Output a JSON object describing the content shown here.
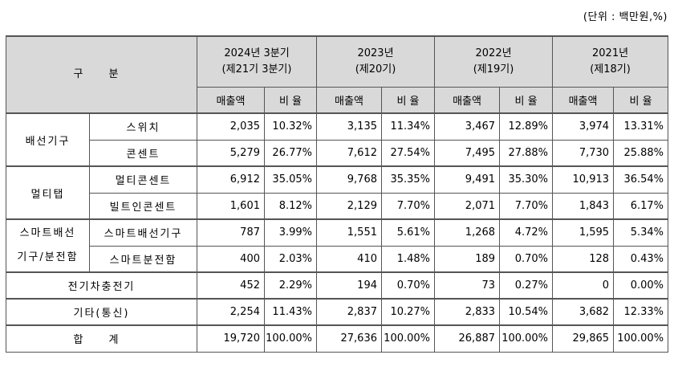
{
  "unit_note": "(단위 : 백만원,%)",
  "header": {
    "category": "구 분",
    "periods": [
      {
        "line1": "2024년 3분기",
        "line2": "(제21기 3분기)"
      },
      {
        "line1": "2023년",
        "line2": "(제20기)"
      },
      {
        "line1": "2022년",
        "line2": "(제19기)"
      },
      {
        "line1": "2021년",
        "line2": "(제18기)"
      }
    ],
    "sales_label": "매출액",
    "ratio_label": "비 율"
  },
  "groups": {
    "wiring": "배선기구",
    "multitap": "멀티탭",
    "smart_line1": "스마트배선",
    "smart_line2": "기구/분전함"
  },
  "rows": [
    {
      "label": "스위치",
      "cells": [
        "2,035",
        "10.32%",
        "3,135",
        "11.34%",
        "3,467",
        "12.89%",
        "3,974",
        "13.31%"
      ]
    },
    {
      "label": "콘센트",
      "cells": [
        "5,279",
        "26.77%",
        "7,612",
        "27.54%",
        "7,495",
        "27.88%",
        "7,730",
        "25.88%"
      ]
    },
    {
      "label": "멀티콘센트",
      "cells": [
        "6,912",
        "35.05%",
        "9,768",
        "35.35%",
        "9,491",
        "35.30%",
        "10,913",
        "36.54%"
      ]
    },
    {
      "label": "빌트인콘센트",
      "cells": [
        "1,601",
        "8.12%",
        "2,129",
        "7.70%",
        "2,071",
        "7.70%",
        "1,843",
        "6.17%"
      ]
    },
    {
      "label": "스마트배선기구",
      "cells": [
        "787",
        "3.99%",
        "1,551",
        "5.61%",
        "1,268",
        "4.72%",
        "1,595",
        "5.34%"
      ]
    },
    {
      "label": "스마트분전함",
      "cells": [
        "400",
        "2.03%",
        "410",
        "1.48%",
        "189",
        "0.70%",
        "128",
        "0.43%"
      ]
    },
    {
      "label": "전기차충전기",
      "cells": [
        "452",
        "2.29%",
        "194",
        "0.70%",
        "73",
        "0.27%",
        "0",
        "0.00%"
      ]
    },
    {
      "label": "기타(통신)",
      "cells": [
        "2,254",
        "11.43%",
        "2,837",
        "10.27%",
        "2,833",
        "10.54%",
        "3,682",
        "12.33%"
      ]
    },
    {
      "label": "합 계",
      "cells": [
        "19,720",
        "100.00%",
        "27,636",
        "100.00%",
        "26,887",
        "100.00%",
        "29,865",
        "100.00%"
      ]
    }
  ]
}
